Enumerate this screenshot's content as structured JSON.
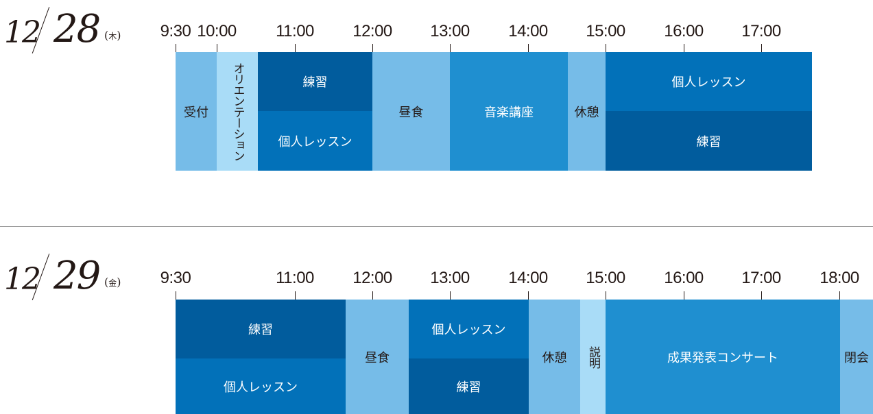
{
  "day1": {
    "month": "12",
    "day": "28",
    "weekday": "木",
    "times": [
      "9:30",
      "10:00",
      "11:00",
      "12:00",
      "13:00",
      "14:00",
      "15:00",
      "16:00",
      "17:00"
    ],
    "blocks": {
      "reception": "受付",
      "orientation": "オリエンテーション",
      "practice_am": "練習",
      "lesson_am": "個人レッスン",
      "lunch": "昼食",
      "music_lecture": "音楽講座",
      "break": "休憩",
      "lesson_pm": "個人レッスン",
      "practice_pm": "練習"
    }
  },
  "day2": {
    "month": "12",
    "day": "29",
    "weekday": "金",
    "times": [
      "9:30",
      "11:00",
      "12:00",
      "13:00",
      "14:00",
      "15:00",
      "16:00",
      "17:00",
      "18:00"
    ],
    "blocks": {
      "practice_am": "練習",
      "lesson_am": "個人レッスン",
      "lunch": "昼食",
      "lesson_pm": "個人レッスン",
      "practice_pm": "練習",
      "break": "休憩",
      "explanation": "説明",
      "concert": "成果発表コンサート",
      "closing": "閉会"
    }
  },
  "colors": {
    "light_blue": "#76bce8",
    "pale_blue": "#a9dcf7",
    "navy": "#015c9d",
    "blue": "#0271b9",
    "mid_blue": "#1f8fd0"
  }
}
